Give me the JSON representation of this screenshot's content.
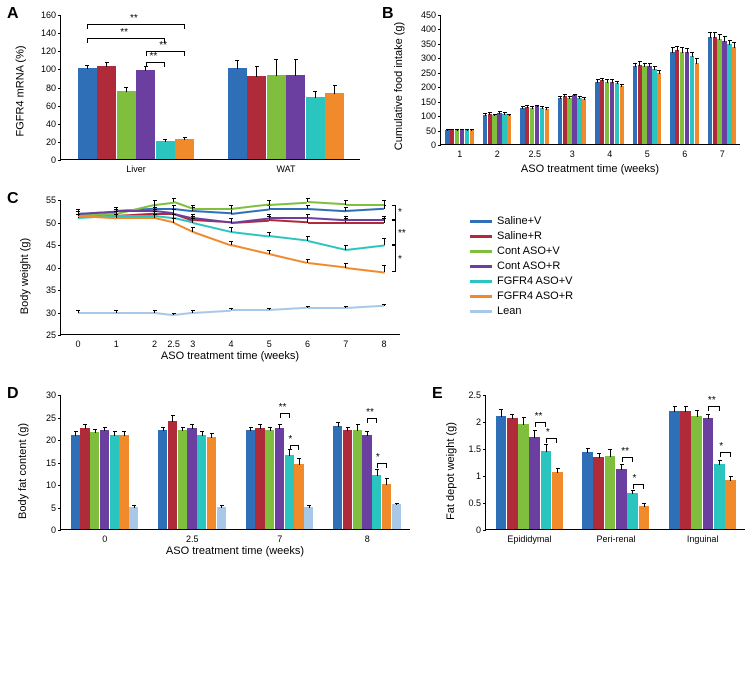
{
  "colors": {
    "saline_v": "#2f6fb8",
    "saline_r": "#b02b3a",
    "contaso_v": "#7fbf3d",
    "contaso_r": "#6a3fa0",
    "fgfr4_v": "#2bc5c0",
    "fgfr4_r": "#f08a2a",
    "lean": "#a8c8e8",
    "axis": "#000000",
    "bg": "#ffffff"
  },
  "legend": [
    {
      "key": "saline_v",
      "label": "Saline+V"
    },
    {
      "key": "saline_r",
      "label": "Saline+R"
    },
    {
      "key": "contaso_v",
      "label": "Cont ASO+V"
    },
    {
      "key": "contaso_r",
      "label": "Cont ASO+R"
    },
    {
      "key": "fgfr4_v",
      "label": "FGFR4 ASO+V"
    },
    {
      "key": "fgfr4_r",
      "label": "FGFR4 ASO+R"
    },
    {
      "key": "lean",
      "label": "Lean"
    }
  ],
  "panelA": {
    "label": "A",
    "ylabel": "FGFR4 mRNA (%)",
    "ylim": [
      0,
      160
    ],
    "ytick_step": 20,
    "categories": [
      "Liver",
      "WAT"
    ],
    "series": [
      "saline_v",
      "saline_r",
      "contaso_v",
      "contaso_r",
      "fgfr4_v",
      "fgfr4_r"
    ],
    "data": {
      "Liver": {
        "vals": [
          100,
          103,
          75,
          98,
          20,
          22
        ],
        "errs": [
          5,
          5,
          6,
          6,
          3,
          3
        ]
      },
      "WAT": {
        "vals": [
          100,
          92,
          93,
          93,
          68,
          73
        ],
        "errs": [
          10,
          12,
          18,
          18,
          8,
          10
        ]
      }
    },
    "sig": [
      {
        "group": "Liver",
        "from": 0,
        "to": 4,
        "y": 135,
        "label": "**"
      },
      {
        "group": "Liver",
        "from": 0,
        "to": 5,
        "y": 150,
        "label": "**"
      },
      {
        "group": "Liver",
        "from": 3,
        "to": 5,
        "y": 120,
        "label": "**"
      },
      {
        "group": "Liver",
        "from": 3,
        "to": 4,
        "y": 108,
        "label": "**"
      }
    ]
  },
  "panelB": {
    "label": "B",
    "ylabel": "Cumulative food intake (g)",
    "xlabel": "ASO treatment time (weeks)",
    "ylim": [
      0,
      450
    ],
    "ytick_step": 50,
    "categories": [
      "1",
      "2",
      "2.5",
      "3",
      "4",
      "5",
      "6",
      "7"
    ],
    "series": [
      "saline_v",
      "saline_r",
      "contaso_v",
      "contaso_r",
      "fgfr4_v",
      "fgfr4_r"
    ],
    "data": {
      "1": {
        "vals": [
          50,
          52,
          50,
          52,
          50,
          50
        ],
        "errs": [
          5,
          5,
          5,
          5,
          5,
          5
        ]
      },
      "2": {
        "vals": [
          102,
          105,
          100,
          108,
          105,
          100
        ],
        "errs": [
          8,
          8,
          8,
          8,
          8,
          8
        ]
      },
      "2.5": {
        "vals": [
          125,
          128,
          125,
          130,
          125,
          122
        ],
        "errs": [
          10,
          10,
          10,
          10,
          10,
          10
        ]
      },
      "3": {
        "vals": [
          160,
          165,
          160,
          168,
          160,
          155
        ],
        "errs": [
          10,
          10,
          10,
          10,
          10,
          10
        ]
      },
      "4": {
        "vals": [
          215,
          220,
          215,
          215,
          210,
          200
        ],
        "errs": [
          12,
          12,
          12,
          12,
          12,
          12
        ]
      },
      "5": {
        "vals": [
          270,
          275,
          270,
          270,
          260,
          245
        ],
        "errs": [
          15,
          15,
          15,
          15,
          15,
          15
        ]
      },
      "6": {
        "vals": [
          320,
          325,
          320,
          318,
          305,
          282
        ],
        "errs": [
          18,
          18,
          18,
          18,
          18,
          18
        ]
      },
      "7": {
        "vals": [
          370,
          370,
          365,
          358,
          345,
          335
        ],
        "errs": [
          20,
          20,
          20,
          20,
          20,
          20
        ]
      }
    }
  },
  "panelC": {
    "label": "C",
    "ylabel": "Body weight (g)",
    "xlabel": "ASO treatment time (weeks)",
    "ylim": [
      25,
      55
    ],
    "ytick_step": 5,
    "xvals": [
      0,
      1,
      2,
      2.5,
      3,
      4,
      5,
      6,
      7,
      8
    ],
    "series": [
      "saline_v",
      "saline_r",
      "contaso_v",
      "contaso_r",
      "fgfr4_v",
      "fgfr4_r",
      "lean"
    ],
    "data": {
      "saline_v": [
        52,
        52.5,
        53,
        53,
        52.5,
        52,
        53,
        53,
        52.5,
        53
      ],
      "saline_r": [
        51.5,
        51.5,
        52,
        52,
        50.5,
        50,
        50.5,
        50,
        50,
        50
      ],
      "contaso_v": [
        51.5,
        52,
        54,
        54.5,
        53,
        53,
        54,
        54.5,
        54,
        54
      ],
      "contaso_r": [
        52,
        52.5,
        52.5,
        52,
        51,
        50,
        51,
        51,
        50.5,
        50.5
      ],
      "fgfr4_v": [
        51,
        51.5,
        51.5,
        51,
        50,
        48,
        47,
        46,
        44,
        45
      ],
      "fgfr4_r": [
        51.5,
        51,
        51,
        50,
        48,
        45,
        43,
        41,
        40,
        39
      ],
      "lean": [
        30,
        30,
        30,
        29.5,
        30,
        30.5,
        30.5,
        31,
        31,
        31.5
      ]
    },
    "errs": {
      "saline_v": [
        1,
        1,
        1,
        1,
        1,
        1,
        1,
        1,
        1,
        1
      ],
      "saline_r": [
        1,
        1,
        1,
        1,
        1,
        1,
        1,
        1,
        1,
        1
      ],
      "contaso_v": [
        1,
        1,
        1,
        1,
        1,
        1,
        1,
        1,
        1,
        1
      ],
      "contaso_r": [
        1,
        1,
        1,
        1,
        1,
        1,
        1,
        1,
        1,
        1
      ],
      "fgfr4_v": [
        1,
        1,
        1,
        1,
        1,
        1,
        1,
        1,
        1,
        1.5
      ],
      "fgfr4_r": [
        1,
        1,
        1,
        1,
        1,
        1,
        1,
        1,
        1,
        1.5
      ],
      "lean": [
        0.5,
        0.5,
        0.5,
        0.5,
        0.5,
        0.5,
        0.5,
        0.5,
        0.5,
        0.5
      ]
    },
    "sig": [
      {
        "from": "contaso_v",
        "to": "contaso_r",
        "label": "*"
      },
      {
        "from": "contaso_r",
        "to": "fgfr4_v",
        "label": "**"
      },
      {
        "from": "fgfr4_v",
        "to": "fgfr4_r",
        "label": "*"
      }
    ]
  },
  "panelD": {
    "label": "D",
    "ylabel": "Body fat content (g)",
    "xlabel": "ASO treatment time (weeks)",
    "ylim": [
      0,
      30
    ],
    "ytick_step": 5,
    "categories": [
      "0",
      "2.5",
      "7",
      "8"
    ],
    "series": [
      "saline_v",
      "saline_r",
      "contaso_v",
      "contaso_r",
      "fgfr4_v",
      "fgfr4_r",
      "lean"
    ],
    "data": {
      "0": {
        "vals": [
          21,
          22.5,
          21.5,
          22,
          21,
          21,
          5
        ],
        "errs": [
          1,
          1,
          1,
          1,
          1,
          1,
          0.5
        ]
      },
      "2.5": {
        "vals": [
          22,
          24,
          22,
          22.5,
          21,
          20.5,
          5
        ],
        "errs": [
          1,
          1.5,
          1,
          1,
          1,
          1,
          0.5
        ]
      },
      "7": {
        "vals": [
          22,
          22.5,
          22,
          22.5,
          16.5,
          14.5,
          5
        ],
        "errs": [
          1,
          1,
          1,
          1,
          1.5,
          1.5,
          0.5
        ]
      },
      "8": {
        "vals": [
          23,
          22,
          22,
          21,
          12,
          10,
          5.5
        ],
        "errs": [
          1,
          1,
          1.5,
          1,
          1.5,
          1.5,
          0.5
        ]
      }
    },
    "sig": [
      {
        "group": "7",
        "from": 3,
        "to": 4,
        "y": 26,
        "label": "**"
      },
      {
        "group": "7",
        "from": 4,
        "to": 5,
        "y": 19,
        "label": "*"
      },
      {
        "group": "8",
        "from": 3,
        "to": 4,
        "y": 25,
        "label": "**"
      },
      {
        "group": "8",
        "from": 4,
        "to": 5,
        "y": 15,
        "label": "*"
      }
    ]
  },
  "panelE": {
    "label": "E",
    "ylabel": "Fat depot weight (g)",
    "ylim": [
      0,
      2.5
    ],
    "ytick_step": 0.5,
    "categories": [
      "Epididymal",
      "Peri-renal",
      "Inguinal"
    ],
    "series": [
      "saline_v",
      "saline_r",
      "contaso_v",
      "contaso_r",
      "fgfr4_v",
      "fgfr4_r"
    ],
    "data": {
      "Epididymal": {
        "vals": [
          2.1,
          2.05,
          1.95,
          1.7,
          1.45,
          1.05
        ],
        "errs": [
          0.15,
          0.1,
          0.15,
          0.15,
          0.15,
          0.1
        ]
      },
      "Peri-renal": {
        "vals": [
          1.42,
          1.33,
          1.35,
          1.12,
          0.66,
          0.42
        ],
        "errs": [
          0.1,
          0.1,
          0.15,
          0.1,
          0.08,
          0.08
        ]
      },
      "Inguinal": {
        "vals": [
          2.18,
          2.18,
          2.1,
          2.05,
          1.2,
          0.9
        ],
        "errs": [
          0.12,
          0.12,
          0.12,
          0.1,
          0.1,
          0.1
        ]
      }
    },
    "sig": [
      {
        "group": "Epididymal",
        "from": 3,
        "to": 4,
        "y": 2.0,
        "label": "**"
      },
      {
        "group": "Epididymal",
        "from": 4,
        "to": 5,
        "y": 1.7,
        "label": "*"
      },
      {
        "group": "Peri-renal",
        "from": 3,
        "to": 4,
        "y": 1.35,
        "label": "**"
      },
      {
        "group": "Peri-renal",
        "from": 4,
        "to": 5,
        "y": 0.85,
        "label": "*"
      },
      {
        "group": "Inguinal",
        "from": 3,
        "to": 4,
        "y": 2.3,
        "label": "**"
      },
      {
        "group": "Inguinal",
        "from": 4,
        "to": 5,
        "y": 1.45,
        "label": "*"
      }
    ]
  }
}
